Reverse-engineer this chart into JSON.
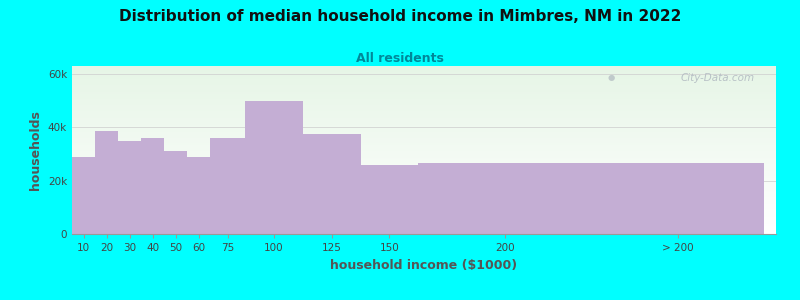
{
  "title": "Distribution of median household income in Mimbres, NM in 2022",
  "subtitle": "All residents",
  "xlabel": "household income ($1000)",
  "ylabel": "households",
  "bar_color": "#C4AED4",
  "background_color": "#00FFFF",
  "plot_bg_top": "#E6F4E6",
  "plot_bg_bottom": "#FFFFFF",
  "categories": [
    "10",
    "20",
    "30",
    "40",
    "50",
    "60",
    "75",
    "100",
    "125",
    "150",
    "200",
    "> 200"
  ],
  "values": [
    29000,
    38500,
    35000,
    36000,
    31000,
    29000,
    36000,
    50000,
    37500,
    26000,
    26500,
    26500
  ],
  "ylim": [
    0,
    63000
  ],
  "yticks": [
    0,
    20000,
    40000,
    60000
  ],
  "ytick_labels": [
    "0",
    "20k",
    "40k",
    "60k"
  ],
  "bar_lefts": [
    0,
    10,
    20,
    30,
    40,
    50,
    60,
    75,
    100,
    125,
    150,
    225
  ],
  "bar_widths": [
    10,
    10,
    10,
    10,
    10,
    10,
    15,
    25,
    25,
    25,
    75,
    75
  ],
  "xtick_positions": [
    5,
    15,
    25,
    35,
    45,
    55,
    67.5,
    87.5,
    112.5,
    137.5,
    187.5,
    262.5
  ],
  "xlim": [
    0,
    305
  ],
  "watermark": "City-Data.com"
}
